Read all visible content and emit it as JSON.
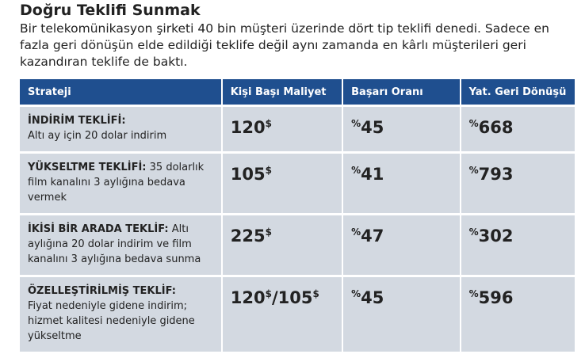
{
  "header": {
    "title": "Doğru Teklifi Sunmak",
    "intro": "Bir telekomünikasyon şirketi 40 bin müşteri üzerinde dört tip teklifi denedi. Sadece en fazla geri dönüşün elde edildiği teklife değil aynı zamanda en kârlı müşterileri geri kazandıran teklife de baktı."
  },
  "table": {
    "columns": [
      "Strateji",
      "Kişi Başı Maliyet",
      "Başarı Oranı",
      "Yat. Geri Dönüşü"
    ],
    "rows": [
      {
        "name": "İNDİRİM TEKLİFİ:",
        "description": "Altı ay için 20 dolar indirim",
        "cost": "120$",
        "success": "%45",
        "roi": "%668"
      },
      {
        "name": "YÜKSELTME TEKLİFİ:",
        "description": "35 dolarlık film kanalını 3 aylığına bedava vermek",
        "cost": "105$",
        "success": "%41",
        "roi": "%793"
      },
      {
        "name": "İKİSİ BİR ARADA TEKLİF:",
        "description": "Altı aylığına 20 dolar indirim ve film kanalını 3 aylığına bedava sunma",
        "cost": "225$",
        "success": "%47",
        "roi": "%302"
      },
      {
        "name": "ÖZELLEŞTİRİLMİŞ TEKLİF:",
        "description": "Fiyat nedeniyle gidene indirim; hizmet kalitesi nedeniyle gidene yükseltme",
        "cost": "120$/105$",
        "success": "%45",
        "roi": "%596"
      }
    ]
  }
}
